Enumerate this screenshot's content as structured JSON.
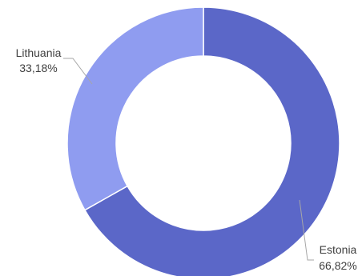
{
  "chart_data": {
    "type": "pie",
    "variant": "donut",
    "title": "",
    "slices": [
      {
        "category": "Estonia",
        "value": 66.82,
        "value_label": "66,82%",
        "color": "#5b67c8"
      },
      {
        "category": "Lithuania",
        "value": 33.18,
        "value_label": "33,18%",
        "color": "#8f9cf0"
      }
    ],
    "start_angle": "top, clockwise",
    "legend": "none",
    "data_labels": "outside with leader lines",
    "background": "#ffffff",
    "divider_color": "#ffffff",
    "label_color": "#404040",
    "leader_color": "#a6a6a6"
  }
}
